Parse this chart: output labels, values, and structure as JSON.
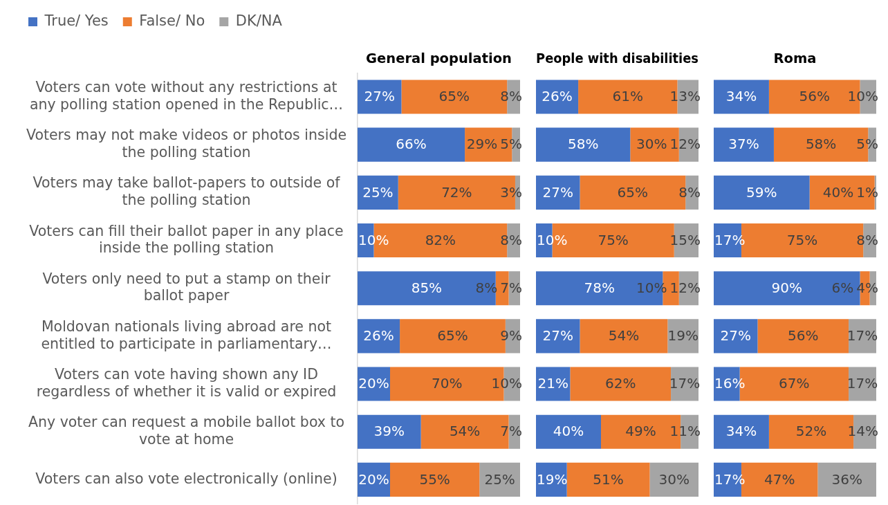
{
  "chart_data": [
    {
      "type": "bar",
      "orientation": "horizontal",
      "stacked": true,
      "title": "General population",
      "legend": "top left",
      "tick_labels": "y",
      "categories": [
        "Voters can vote without any restrictions at any polling station opened in the Republic…",
        "Voters may not make videos or photos inside the polling station",
        "Voters may take ballot-papers to outside of the polling station",
        "Voters can fill their ballot paper in any place inside the polling station",
        "Voters only need to put a stamp on their ballot paper",
        "Moldovan nationals living abroad are not entitled to participate in parliamentary…",
        "Voters can vote having shown any ID regardless of whether it is valid or expired",
        "Any voter can request a mobile ballot box to vote at home",
        "Voters can also vote electronically (online)"
      ],
      "series": [
        {
          "name": "True/ Yes",
          "color": "#4472c4",
          "values": [
            27,
            66,
            25,
            10,
            85,
            26,
            20,
            39,
            20
          ],
          "value_labels": [
            "27%",
            "66%",
            "25%",
            "10%",
            "85%",
            "26%",
            "20%",
            "39%",
            "20%"
          ]
        },
        {
          "name": "False/ No",
          "color": "#ed7d31",
          "values": [
            65,
            29,
            72,
            82,
            8,
            65,
            70,
            54,
            55
          ],
          "value_labels": [
            "65%",
            "29%",
            "72%",
            "82%",
            "8%",
            "65%",
            "70%",
            "54%",
            "55%"
          ]
        },
        {
          "name": "DK/NA",
          "color": "#a5a5a5",
          "values": [
            8,
            5,
            3,
            8,
            7,
            9,
            10,
            7,
            25
          ],
          "value_labels": [
            "8%",
            "5%",
            "3%",
            "8%",
            "7%",
            "9%",
            "10%",
            "7%",
            "25%"
          ]
        }
      ]
    },
    {
      "type": "bar",
      "orientation": "horizontal",
      "stacked": true,
      "title": "People with disabilities",
      "tick_labels": false,
      "categories": [
        null,
        null,
        null,
        null,
        null,
        null,
        null,
        null,
        null
      ],
      "series": [
        {
          "color": "#4472c4",
          "values": [
            26,
            58,
            27,
            10,
            78,
            27,
            21,
            40,
            19
          ],
          "value_labels": [
            "26%",
            "58%",
            "27%",
            "10%",
            "78%",
            "27%",
            "21%",
            "40%",
            "19%"
          ]
        },
        {
          "color": "#ed7d31",
          "values": [
            61,
            30,
            65,
            75,
            10,
            54,
            62,
            49,
            51
          ],
          "value_labels": [
            "61%",
            "30%",
            "65%",
            "75%",
            "10%",
            "54%",
            "62%",
            "49%",
            "51%"
          ]
        },
        {
          "color": "#a5a5a5",
          "values": [
            13,
            12,
            8,
            15,
            12,
            19,
            17,
            11,
            30
          ],
          "value_labels": [
            "13%",
            "12%",
            "8%",
            "15%",
            "12%",
            "19%",
            "17%",
            "11%",
            "30%"
          ]
        }
      ]
    },
    {
      "type": "bar",
      "orientation": "horizontal",
      "stacked": true,
      "title": "Roma",
      "tick_labels": false,
      "categories": [
        null,
        null,
        null,
        null,
        null,
        null,
        null,
        null,
        null
      ],
      "series": [
        {
          "color": "#4472c4",
          "values": [
            34,
            37,
            59,
            17,
            90,
            27,
            16,
            34,
            17
          ],
          "value_labels": [
            "34%",
            "37%",
            "59%",
            "17%",
            "90%",
            "27%",
            "16%",
            "34%",
            "17%"
          ]
        },
        {
          "color": "#ed7d31",
          "values": [
            56,
            58,
            40,
            75,
            6,
            56,
            67,
            52,
            47
          ],
          "value_labels": [
            "56%",
            "58%",
            "40%",
            "75%",
            "6%",
            "56%",
            "67%",
            "52%",
            "47%"
          ]
        },
        {
          "color": "#a5a5a5",
          "values": [
            10,
            5,
            1,
            8,
            4,
            17,
            17,
            14,
            36
          ],
          "value_labels": [
            "10%",
            "5%",
            "1%",
            "8%",
            "4%",
            "17%",
            "17%",
            "14%",
            "36%"
          ]
        }
      ]
    }
  ]
}
